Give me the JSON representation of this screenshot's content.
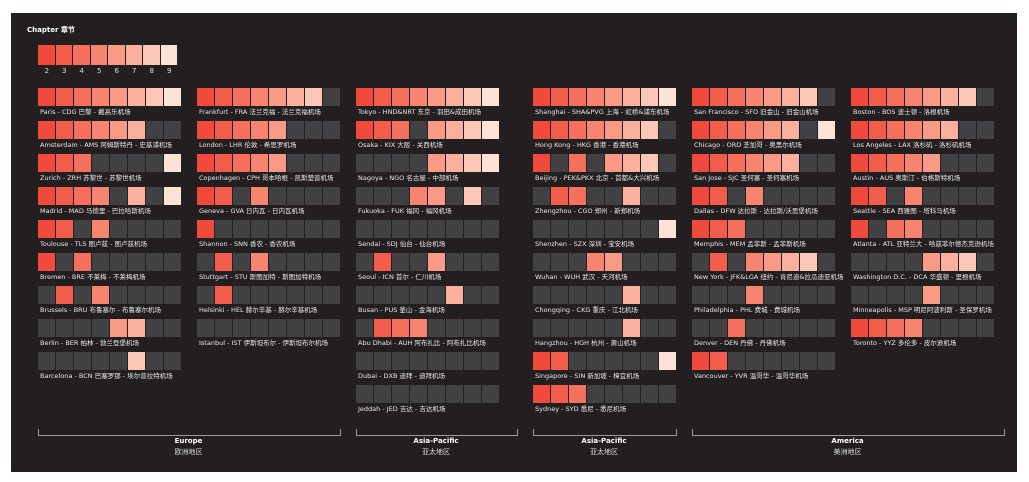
{
  "chart_data": {
    "type": "heatmap",
    "legend": {
      "title": "Chapter 章节",
      "values": [
        2,
        3,
        4,
        5,
        6,
        7,
        8,
        9
      ],
      "colors": [
        "#f04a3c",
        "#f25c4b",
        "#f4705c",
        "#f6846f",
        "#f89a85",
        "#fab09d",
        "#fbc8b7",
        "#fde2d7"
      ],
      "empty_color": "#414042"
    },
    "columns": [
      {
        "airports": [
          {
            "label": "Paris - CDG 巴黎 - 戴高乐机场",
            "values": [
              2,
              3,
              4,
              5,
              6,
              7,
              8,
              9
            ]
          },
          {
            "label": "Amsterdam - AMS 阿姆斯特丹 - 史基浦机场",
            "values": [
              2,
              3,
              4,
              5,
              6,
              7,
              null,
              null
            ]
          },
          {
            "label": "Zurich - ZRH 苏黎世 - 苏黎世机场",
            "values": [
              2,
              3,
              4,
              null,
              null,
              null,
              null,
              9
            ]
          },
          {
            "label": "Madrid - MAD 马德里 - 巴拉哈斯机场",
            "values": [
              2,
              3,
              4,
              5,
              null,
              7,
              null,
              9
            ]
          },
          {
            "label": "Toulouse - TLS 图卢兹 - 图卢兹机场",
            "values": [
              2,
              3,
              null,
              5,
              null,
              null,
              null,
              null
            ]
          },
          {
            "label": "Bremen - BRE 不莱梅 - 不莱梅机场",
            "values": [
              2,
              null,
              4,
              null,
              null,
              null,
              null,
              null
            ]
          },
          {
            "label": "Brussels - BRU 布鲁塞尔 - 布鲁塞尔机场",
            "values": [
              null,
              3,
              null,
              5,
              null,
              null,
              null,
              null
            ]
          },
          {
            "label": "Berlin - BER 柏林 - 勃兰登堡机场",
            "values": [
              null,
              null,
              null,
              null,
              6,
              7,
              null,
              null
            ]
          },
          {
            "label": "Barcelona - BCN 巴塞罗那 - 埃尔普拉特机场",
            "values": [
              null,
              null,
              null,
              null,
              null,
              8,
              null,
              null
            ]
          }
        ]
      },
      {
        "airports": [
          {
            "label": "Frankfurt - FRA 法兰克福 - 法兰克福机场",
            "values": [
              2,
              3,
              4,
              5,
              6,
              7,
              8,
              null
            ]
          },
          {
            "label": "London - LHR 伦敦 - 希思罗机场",
            "values": [
              2,
              3,
              4,
              5,
              6,
              null,
              null,
              null
            ]
          },
          {
            "label": "Copenhagen - CPH 哥本哈根 - 凯斯楚普机场",
            "values": [
              2,
              3,
              4,
              5,
              6,
              null,
              null,
              null
            ]
          },
          {
            "label": "Geneva - GVA 日内瓦 - 日内瓦机场",
            "values": [
              2,
              3,
              null,
              5,
              null,
              null,
              null,
              null
            ]
          },
          {
            "label": "Shannon - SNN 香农 - 香农机场",
            "values": [
              2,
              null,
              null,
              null,
              null,
              null,
              null,
              null
            ]
          },
          {
            "label": "Stuttgart - STU 斯图加特 - 斯图加特机场",
            "values": [
              null,
              3,
              null,
              5,
              null,
              null,
              null,
              null
            ]
          },
          {
            "label": "Helsinki - HEL 赫尔辛基 - 赫尔辛基机场",
            "values": [
              null,
              3,
              null,
              null,
              null,
              null,
              null,
              null
            ]
          },
          {
            "label": "Istanbul - IST 伊斯坦布尔 - 伊斯坦布尔机场",
            "values": [
              null,
              null,
              null,
              null,
              null,
              null,
              null,
              null
            ]
          }
        ]
      },
      {
        "airports": [
          {
            "label": "Tokyo - HND&NRT 东京 - 羽田&成田机场",
            "values": [
              2,
              3,
              4,
              5,
              6,
              7,
              8,
              9
            ]
          },
          {
            "label": "Osaka - KIX 大阪 - 关西机场",
            "values": [
              2,
              3,
              4,
              null,
              6,
              7,
              8,
              9
            ]
          },
          {
            "label": "Nagoya - NGO 名古屋 - 中部机场",
            "values": [
              null,
              null,
              null,
              null,
              6,
              7,
              8,
              9
            ]
          },
          {
            "label": "Fukuoka - FUK 福冈 - 福冈机场",
            "values": [
              null,
              null,
              null,
              5,
              6,
              null,
              8,
              null
            ]
          },
          {
            "label": "Sendai - SDJ 仙台 - 仙台机场",
            "values": [
              null,
              null,
              null,
              null,
              null,
              null,
              null,
              null
            ]
          },
          {
            "label": "Seoul - ICN 首尔 - 仁川机场",
            "values": [
              null,
              3,
              null,
              null,
              6,
              null,
              null,
              null
            ]
          },
          {
            "label": "Busan - PUS 釜山 - 金海机场",
            "values": [
              null,
              null,
              null,
              null,
              null,
              7,
              null,
              null
            ]
          },
          {
            "label": "Abu Dhabi - AUH 阿布扎比 - 阿布扎比机场",
            "values": [
              null,
              3,
              4,
              5,
              null,
              null,
              null,
              null
            ]
          },
          {
            "label": "Dubai - DXB 迪拜 - 迪拜机场",
            "values": [
              null,
              null,
              null,
              null,
              null,
              null,
              null,
              null
            ]
          },
          {
            "label": "Jeddah - JED 吉达 - 吉达机场",
            "values": [
              null,
              null,
              null,
              null,
              null,
              null,
              null,
              null
            ]
          }
        ]
      },
      {
        "airports": [
          {
            "label": "Shanghai - SHA&PVG 上海 - 虹桥&浦东机场",
            "values": [
              2,
              3,
              4,
              5,
              6,
              7,
              8,
              9
            ]
          },
          {
            "label": "Hong Kong - HKG 香港 - 香港机场",
            "values": [
              2,
              3,
              4,
              5,
              6,
              7,
              8,
              null
            ]
          },
          {
            "label": "Beijing - PEK&PKX 北京 - 首都&大兴机场",
            "values": [
              2,
              null,
              4,
              null,
              6,
              7,
              8,
              null
            ]
          },
          {
            "label": "Zhengzhou - CGO 郑州 - 新郑机场",
            "values": [
              null,
              3,
              4,
              null,
              null,
              7,
              null,
              null
            ]
          },
          {
            "label": "Shenzhen - SZX 深圳 - 宝安机场",
            "values": [
              null,
              null,
              null,
              null,
              null,
              null,
              null,
              9
            ]
          },
          {
            "label": "Wuhan - WUH 武汉 - 天河机场",
            "values": [
              null,
              null,
              null,
              5,
              6,
              null,
              null,
              null
            ]
          },
          {
            "label": "Chongqing - CKG 重庆 - 江北机场",
            "values": [
              null,
              null,
              null,
              null,
              null,
              7,
              null,
              null
            ]
          },
          {
            "label": "Hangzhou - HGH 杭州 - 萧山机场",
            "values": [
              null,
              null,
              null,
              null,
              null,
              7,
              null,
              null
            ]
          },
          {
            "label": "Singapore - SIN 新加坡 - 樟宜机场",
            "values": [
              2,
              3,
              null,
              null,
              null,
              null,
              null,
              9
            ]
          },
          {
            "label": "Sydney - SYD 悉尼 - 悉尼机场",
            "values": [
              2,
              3,
              4,
              null,
              null,
              null,
              null,
              null
            ]
          }
        ]
      },
      {
        "airports": [
          {
            "label": "San Francisco - SFO 旧金山 - 旧金山机场",
            "values": [
              2,
              3,
              4,
              5,
              6,
              7,
              8,
              null
            ]
          },
          {
            "label": "Chicago - ORD 芝加哥 - 奥黑尔机场",
            "values": [
              2,
              3,
              4,
              5,
              6,
              7,
              null,
              9
            ]
          },
          {
            "label": "San Jose - SJC 圣何塞 - 圣何塞机场",
            "values": [
              2,
              3,
              4,
              5,
              6,
              7,
              null,
              null
            ]
          },
          {
            "label": "Dallas - DFW 达拉斯 - 达拉斯/沃思堡机场",
            "values": [
              2,
              3,
              null,
              5,
              null,
              null,
              null,
              null
            ]
          },
          {
            "label": "Memphis - MEM 孟菲斯 - 孟菲斯机场",
            "values": [
              2,
              3,
              4,
              null,
              null,
              null,
              null,
              null
            ]
          },
          {
            "label": "New York - JFK&LGA 纽约 - 肯尼迪&拉瓜迪亚机场",
            "values": [
              null,
              3,
              null,
              5,
              6,
              7,
              8,
              null
            ]
          },
          {
            "label": "Philadelphia - PHL 费城 - 费城机场",
            "values": [
              null,
              null,
              null,
              5,
              null,
              null,
              null,
              null
            ]
          },
          {
            "label": "Denver - DEN 丹佛 - 丹佛机场",
            "values": [
              null,
              null,
              4,
              null,
              null,
              null,
              null,
              null
            ]
          },
          {
            "label": "Vancouver - YVR 温哥华 - 温哥华机场",
            "values": [
              2,
              3,
              null,
              null,
              null,
              null,
              null,
              null
            ]
          }
        ]
      },
      {
        "airports": [
          {
            "label": "Boston - BOS 波士顿 - 洛根机场",
            "values": [
              2,
              3,
              4,
              5,
              6,
              7,
              8,
              null
            ]
          },
          {
            "label": "Los Angeles - LAX 洛杉矶 - 洛杉矶机场",
            "values": [
              2,
              3,
              4,
              5,
              6,
              7,
              null,
              null
            ]
          },
          {
            "label": "Austin - AUS 奥斯汀 - 伯格斯特机场",
            "values": [
              2,
              3,
              4,
              5,
              6,
              null,
              null,
              null
            ]
          },
          {
            "label": "Seattle - SEA 西雅图 - 塔科马机场",
            "values": [
              2,
              3,
              null,
              5,
              null,
              null,
              null,
              null
            ]
          },
          {
            "label": "Atlanta - ATL 亚特兰大 - 哈兹菲尔德杰克逊机场",
            "values": [
              2,
              null,
              4,
              5,
              null,
              null,
              null,
              null
            ]
          },
          {
            "label": "Washington D.C. - DCA 华盛顿 - 里根机场",
            "values": [
              null,
              null,
              null,
              null,
              6,
              7,
              8,
              null
            ]
          },
          {
            "label": "Minneapolis - MSP 明尼阿波利斯 - 圣保罗机场",
            "values": [
              null,
              null,
              null,
              null,
              6,
              null,
              null,
              null
            ]
          },
          {
            "label": "Toronto - YYZ 多伦多 - 皮尔逊机场",
            "values": [
              2,
              3,
              4,
              5,
              null,
              null,
              null,
              null
            ]
          }
        ]
      }
    ],
    "regions": [
      {
        "en": "Europe",
        "zh": "欧洲地区"
      },
      {
        "en": "Asia-Pacific",
        "zh": "亚太地区"
      },
      {
        "en": "Asia-Pacific",
        "zh": "亚太地区"
      },
      {
        "en": "America",
        "zh": "美洲地区"
      }
    ]
  }
}
